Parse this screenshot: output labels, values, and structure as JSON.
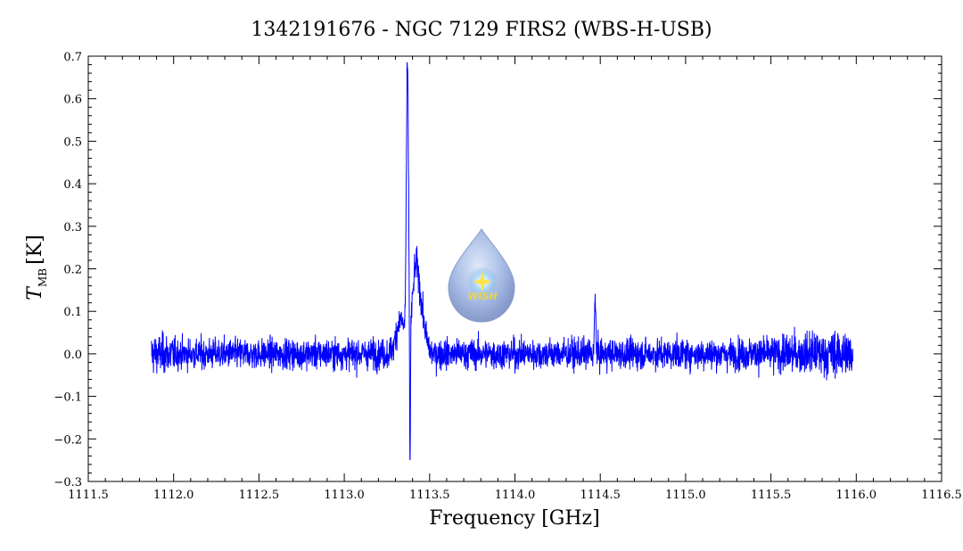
{
  "chart_data": {
    "type": "line",
    "title": "1342191676 - NGC 7129 FIRS2 (WBS-H-USB)",
    "xlabel": "Frequency [GHz]",
    "ylabel_main": "T",
    "ylabel_sub": "MB",
    "ylabel_unit": "[K]",
    "xlim": [
      1111.5,
      1116.5
    ],
    "ylim": [
      -0.3,
      0.7
    ],
    "x_ticks": [
      "1111.5",
      "1112.0",
      "1112.5",
      "1113.0",
      "1113.5",
      "1114.0",
      "1114.5",
      "1115.0",
      "1115.5",
      "1116.0",
      "1116.5"
    ],
    "y_ticks": [
      "0.7",
      "0.6",
      "0.5",
      "0.4",
      "0.3",
      "0.2",
      "0.1",
      "0.0",
      "−0.1",
      "−0.2",
      "−0.3"
    ],
    "grid": false,
    "series": [
      {
        "color": "#0000ff",
        "x_start": 1111.87,
        "x_end": 1115.98,
        "baseline": 0.0,
        "noise_rms": 0.03,
        "features": [
          {
            "x": 1113.37,
            "peak": 0.66,
            "note_min": -0.24
          },
          {
            "x": 1113.42,
            "peak": 0.23
          },
          {
            "x": 1114.47,
            "peak": 0.16
          }
        ]
      }
    ]
  },
  "logo": {
    "name": "wish-logo",
    "text": "WISH"
  }
}
